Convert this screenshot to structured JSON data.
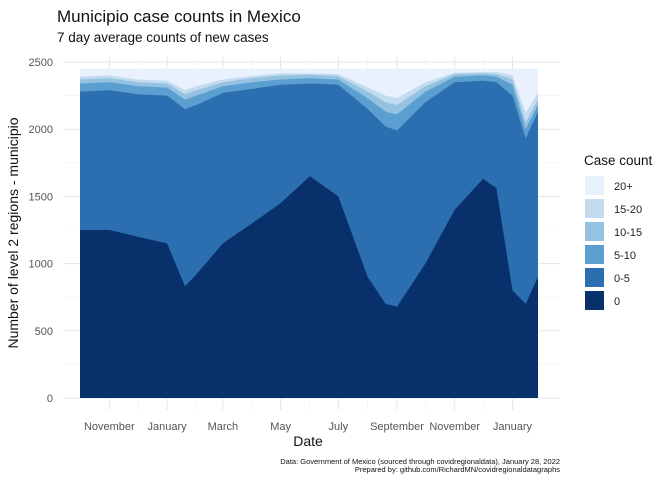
{
  "chart_data": {
    "type": "area",
    "title": "Municipio case counts in Mexico",
    "subtitle": "7 day average counts of new cases",
    "xlabel": "Date",
    "ylabel": "Number of level 2 regions - municipio",
    "y_ticks": [
      0,
      500,
      1000,
      1500,
      2000,
      2500
    ],
    "ylim": [
      0,
      2500
    ],
    "x_tick_labels": [
      "November",
      "January",
      "March",
      "May",
      "July",
      "September",
      "November",
      "January"
    ],
    "x_tick_dates": [
      "2020-11-01",
      "2021-01-01",
      "2021-03-01",
      "2021-05-01",
      "2021-07-01",
      "2021-09-01",
      "2021-11-01",
      "2022-01-01"
    ],
    "x_start": "2020-10-01",
    "x_end": "2022-01-28",
    "grid": true,
    "stacking": "cumulative",
    "x": [
      "2020-10-01",
      "2020-11-01",
      "2020-12-01",
      "2021-01-01",
      "2021-01-20",
      "2021-02-01",
      "2021-03-01",
      "2021-04-01",
      "2021-05-01",
      "2021-06-01",
      "2021-07-01",
      "2021-08-01",
      "2021-08-20",
      "2021-09-01",
      "2021-10-01",
      "2021-11-01",
      "2021-12-01",
      "2021-12-15",
      "2022-01-01",
      "2022-01-15",
      "2022-01-28"
    ],
    "series": [
      {
        "name": "0",
        "color": "#08306b",
        "values": [
          1250,
          1250,
          1200,
          1150,
          830,
          920,
          1150,
          1300,
          1450,
          1650,
          1500,
          900,
          700,
          680,
          1000,
          1400,
          1630,
          1560,
          800,
          700,
          900
        ]
      },
      {
        "name": "0-5",
        "color": "#2b6fb0",
        "values": [
          2280,
          2290,
          2260,
          2250,
          2150,
          2180,
          2270,
          2300,
          2330,
          2340,
          2330,
          2150,
          2020,
          1990,
          2200,
          2350,
          2360,
          2350,
          2250,
          1930,
          2130
        ]
      },
      {
        "name": "5-10",
        "color": "#5b9fd0",
        "values": [
          2340,
          2350,
          2320,
          2310,
          2220,
          2250,
          2320,
          2350,
          2370,
          2380,
          2370,
          2230,
          2130,
          2110,
          2280,
          2390,
          2400,
          2390,
          2330,
          2000,
          2180
        ]
      },
      {
        "name": "10-15",
        "color": "#94c2e0",
        "values": [
          2370,
          2380,
          2350,
          2340,
          2260,
          2290,
          2350,
          2380,
          2400,
          2405,
          2395,
          2280,
          2200,
          2180,
          2320,
          2410,
          2415,
          2410,
          2370,
          2050,
          2220
        ]
      },
      {
        "name": "15-20",
        "color": "#c2dbef",
        "values": [
          2390,
          2400,
          2370,
          2360,
          2290,
          2320,
          2370,
          2395,
          2415,
          2415,
          2410,
          2310,
          2250,
          2230,
          2350,
          2420,
          2425,
          2425,
          2400,
          2120,
          2270
        ]
      },
      {
        "name": "20+",
        "color": "#e8f1fd",
        "values": [
          2450,
          2450,
          2450,
          2450,
          2450,
          2450,
          2450,
          2450,
          2450,
          2450,
          2450,
          2450,
          2450,
          2450,
          2450,
          2450,
          2450,
          2450,
          2450,
          2450,
          2450
        ]
      }
    ],
    "legend": {
      "title": "Case count",
      "placement": "right",
      "items": [
        "20+",
        "15-20",
        "10-15",
        "5-10",
        "0-5",
        "0"
      ]
    },
    "caption": [
      "Data: Government of Mexico (sourced through covidregionaldata), January 28, 2022",
      "Prepared by: github.com/RichardMN/covidregionaldatagraphs"
    ]
  }
}
